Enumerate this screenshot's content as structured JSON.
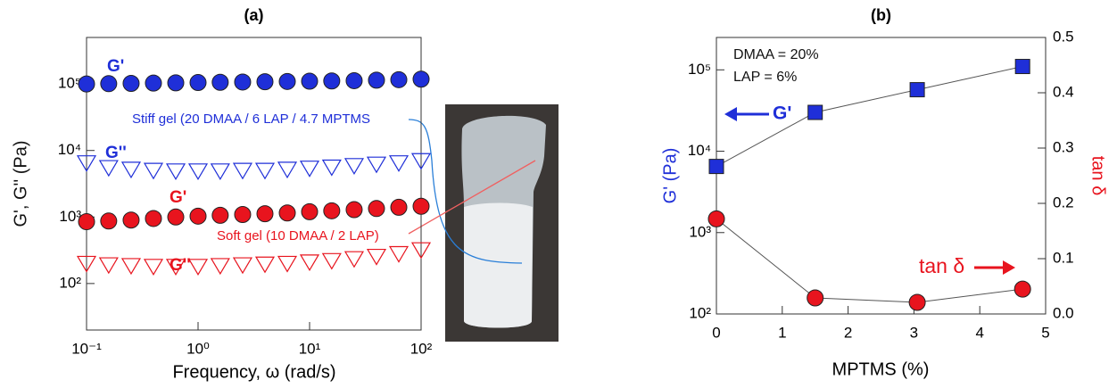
{
  "chart_data": [
    {
      "type": "scatter",
      "title": "(a)",
      "xlabel": "Frequency,  ω (rad/s)",
      "ylabel": "G', G'' (Pa)",
      "xlog": true,
      "ylog": true,
      "xlim": [
        0.1,
        100
      ],
      "ylim": [
        20,
        500000
      ],
      "xticks": [
        {
          "value": 0.1,
          "label": "10⁻¹"
        },
        {
          "value": 1,
          "label": "10⁰"
        },
        {
          "value": 10,
          "label": "10¹"
        },
        {
          "value": 100,
          "label": "10²"
        }
      ],
      "yticks": [
        {
          "value": 100,
          "label": "10²"
        },
        {
          "value": 1000,
          "label": "10³"
        },
        {
          "value": 10000,
          "label": "10⁴"
        },
        {
          "value": 100000,
          "label": "10⁵"
        }
      ],
      "x": [
        0.1,
        0.158,
        0.251,
        0.398,
        0.631,
        1,
        1.58,
        2.51,
        3.98,
        6.31,
        10,
        15.8,
        25.1,
        39.8,
        63.1,
        100
      ],
      "series": [
        {
          "color": "#1f2fd8",
          "marker": "circle",
          "filled": true,
          "values": [
            100000,
            101000,
            102000,
            103000,
            104000,
            105000,
            106000,
            107000,
            108000,
            109000,
            110000,
            111000,
            112000,
            114000,
            116000,
            118000
          ]
        },
        {
          "color": "#1f2fd8",
          "marker": "triangle",
          "filled": false,
          "values": [
            6500,
            5500,
            5200,
            5000,
            4900,
            4900,
            4900,
            5000,
            5000,
            5200,
            5400,
            5600,
            5900,
            6200,
            6500,
            7000
          ]
        },
        {
          "color": "#e8141e",
          "marker": "circle",
          "filled": true,
          "values": [
            850,
            870,
            900,
            950,
            1000,
            1030,
            1060,
            1090,
            1120,
            1150,
            1200,
            1240,
            1290,
            1340,
            1400,
            1450
          ]
        },
        {
          "color": "#e8141e",
          "marker": "triangle",
          "filled": false,
          "values": [
            200,
            190,
            185,
            180,
            180,
            180,
            185,
            190,
            195,
            200,
            210,
            220,
            235,
            255,
            280,
            320
          ]
        }
      ],
      "annotations": [
        {
          "text": "G'",
          "color": "#1f2fd8"
        },
        {
          "text": "G''",
          "color": "#1f2fd8"
        },
        {
          "text": "G'",
          "color": "#e8141e"
        },
        {
          "text": "G''",
          "color": "#e8141e"
        },
        {
          "text": "Stiff gel (20 DMAA / 6 LAP / 4.7 MPTMS",
          "color": "#1f2fd8"
        },
        {
          "text": "Soft gel (10 DMAA / 2 LAP)",
          "color": "#e8141e"
        }
      ]
    },
    {
      "type": "line",
      "title": "(b)",
      "xlabel": "MPTMS (%)",
      "ylabel": "G' (Pa)",
      "y2label": "tan δ",
      "xlog": false,
      "ylog": true,
      "xlim": [
        0,
        5
      ],
      "ylim": [
        100,
        250000
      ],
      "y2lim": [
        0,
        0.5
      ],
      "xticks": [
        0,
        1,
        2,
        3,
        4,
        5
      ],
      "yticks": [
        {
          "value": 100,
          "label": "10²"
        },
        {
          "value": 1000,
          "label": "10³"
        },
        {
          "value": 10000,
          "label": "10⁴"
        },
        {
          "value": 100000,
          "label": "10⁵"
        }
      ],
      "y2ticks": [
        {
          "value": 0,
          "label": "0.0"
        },
        0.1,
        0.2,
        0.3,
        0.4,
        0.5
      ],
      "x": [
        0,
        1.5,
        3.05,
        4.65
      ],
      "series": [
        {
          "color": "#1f2fd8",
          "marker": "square",
          "filled": true,
          "values": [
            6500,
            30000,
            57000,
            110000
          ]
        },
        {
          "color": "#e8141e",
          "marker": "circle",
          "filled": true,
          "axis": "y2",
          "values": [
            0.172,
            0.029,
            0.021,
            0.045
          ]
        }
      ],
      "annotations": [
        {
          "text": "DMAA = 20%",
          "color": "#111111"
        },
        {
          "text": "LAP = 6%",
          "color": "#111111"
        },
        {
          "text": "G'",
          "color": "#1f2fd8"
        },
        {
          "text": "tan δ",
          "color": "#e8141e"
        }
      ]
    }
  ]
}
